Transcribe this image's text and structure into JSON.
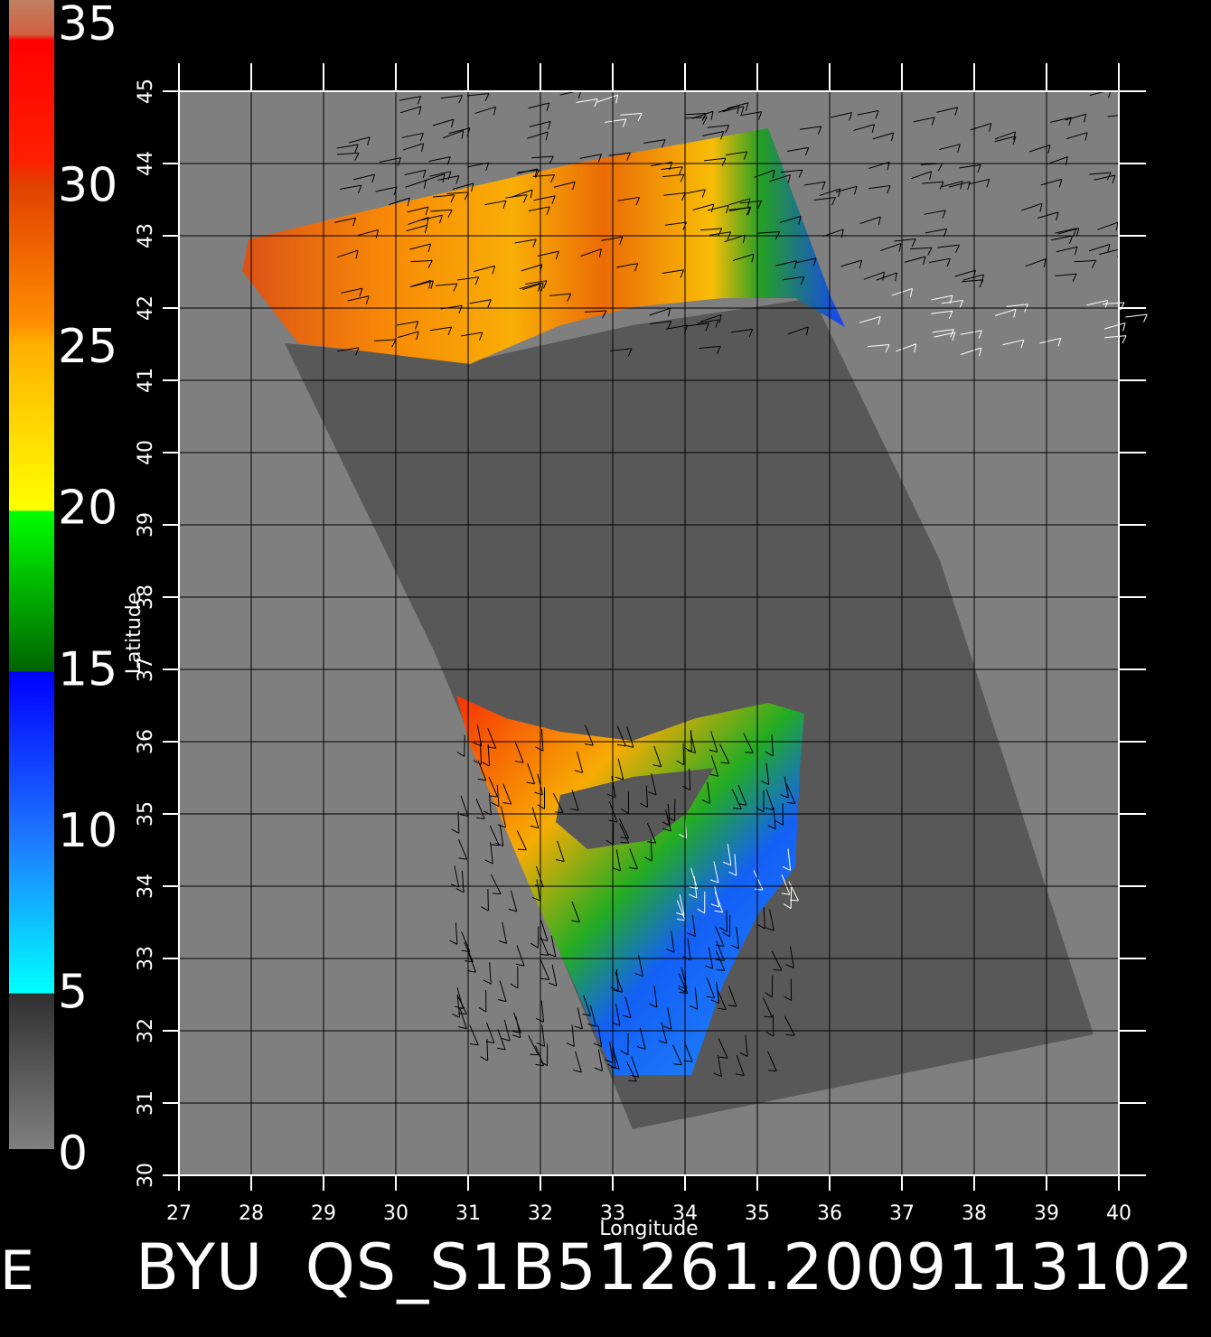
{
  "map": {
    "xlabel": "Longitude",
    "ylabel": "Latitude",
    "x_ticks": [
      "27",
      "28",
      "29",
      "30",
      "31",
      "32",
      "33",
      "34",
      "35",
      "36",
      "37",
      "38",
      "39",
      "40"
    ],
    "y_ticks": [
      "30",
      "31",
      "32",
      "33",
      "34",
      "35",
      "36",
      "37",
      "38",
      "39",
      "40",
      "41",
      "42",
      "43",
      "44",
      "45"
    ],
    "lon_range": [
      27,
      40
    ],
    "lat_range": [
      30,
      45
    ],
    "background_color": "#7f7f7f",
    "land_color": "#585858"
  },
  "colorbar": {
    "labels": [
      "0",
      "5",
      "10",
      "15",
      "20",
      "25",
      "30",
      "35"
    ],
    "range": [
      0,
      35
    ],
    "colors": {
      "low_gray": "#808080",
      "dark": "#303030",
      "cyan": "#00ffff",
      "blue": "#0000ff",
      "green_dark": "#006400",
      "green": "#00ff00",
      "yellow": "#ffff00",
      "orange": "#ff8c00",
      "red": "#ff0000",
      "brown": "#c87850"
    }
  },
  "footer": {
    "title": "BYU  QS_S1B51261.2009113102",
    "left_mark": "E"
  }
}
